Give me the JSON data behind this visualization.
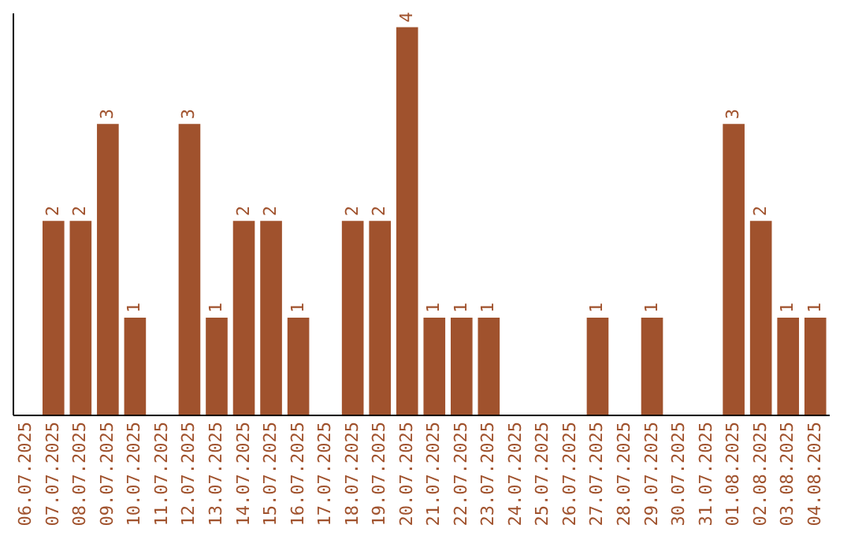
{
  "chart_data": {
    "type": "bar",
    "categories": [
      "06.07.2025",
      "07.07.2025",
      "08.07.2025",
      "09.07.2025",
      "10.07.2025",
      "11.07.2025",
      "12.07.2025",
      "13.07.2025",
      "14.07.2025",
      "15.07.2025",
      "16.07.2025",
      "17.07.2025",
      "18.07.2025",
      "19.07.2025",
      "20.07.2025",
      "21.07.2025",
      "22.07.2025",
      "23.07.2025",
      "24.07.2025",
      "25.07.2025",
      "26.07.2025",
      "27.07.2025",
      "28.07.2025",
      "29.07.2025",
      "30.07.2025",
      "31.07.2025",
      "01.08.2025",
      "02.08.2025",
      "03.08.2025",
      "04.08.2025"
    ],
    "values": [
      0,
      2,
      2,
      3,
      1,
      0,
      3,
      1,
      2,
      2,
      1,
      0,
      2,
      2,
      4,
      1,
      1,
      1,
      0,
      0,
      0,
      1,
      0,
      1,
      0,
      0,
      3,
      2,
      1,
      1
    ],
    "value_labels": [
      null,
      "2",
      "2",
      "3",
      "1",
      null,
      "3",
      "1",
      "2",
      "2",
      "1",
      null,
      "2",
      "2",
      "4",
      "1",
      "1",
      "1",
      null,
      null,
      null,
      "1",
      null,
      "1",
      null,
      null,
      "3",
      "2",
      "1",
      "1"
    ],
    "color": "#a0522d",
    "ylim": [
      0,
      4.15
    ],
    "tick_labels": "x",
    "grid": false
  }
}
